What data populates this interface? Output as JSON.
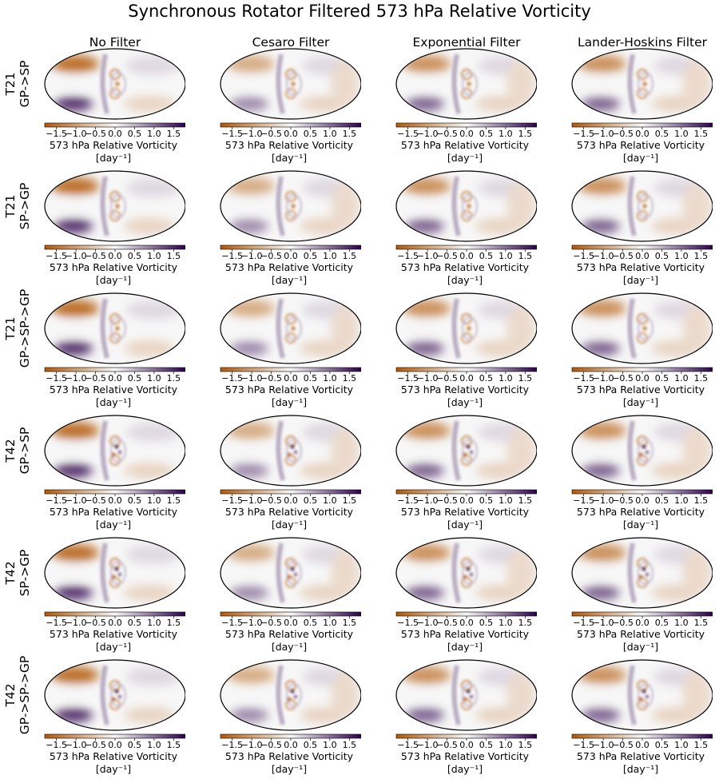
{
  "chart_data": {
    "type": "heatmap",
    "title": "Synchronous Rotator Filtered 573 hPa Relative Vorticity",
    "columns": [
      "No Filter",
      "Cesaro Filter",
      "Exponential Filter",
      "Lander-Hoskins Filter"
    ],
    "rows": [
      {
        "resolution": "T21",
        "transform": "GP->SP"
      },
      {
        "resolution": "T21",
        "transform": "SP->GP"
      },
      {
        "resolution": "T21",
        "transform": "GP->SP->GP"
      },
      {
        "resolution": "T42",
        "transform": "GP->SP"
      },
      {
        "resolution": "T42",
        "transform": "SP->GP"
      },
      {
        "resolution": "T42",
        "transform": "GP->SP->GP"
      }
    ],
    "projection": "mollweide",
    "colorbar": {
      "label_line1": "573 hPa Relative Vorticity",
      "label_line2": "[day⁻¹]",
      "range": [
        -1.8,
        1.8
      ],
      "ticks": [
        -1.5,
        -1.0,
        -0.5,
        0.0,
        0.5,
        1.0,
        1.5
      ],
      "tick_labels": [
        "−1.5",
        "−1.0",
        "−0.5",
        "0.0",
        "0.5",
        "1.0",
        "1.5"
      ],
      "colormap": "PuOr",
      "low_color": "#b35806",
      "mid_color": "#f7f7f7",
      "high_color": "#2d004b"
    }
  }
}
